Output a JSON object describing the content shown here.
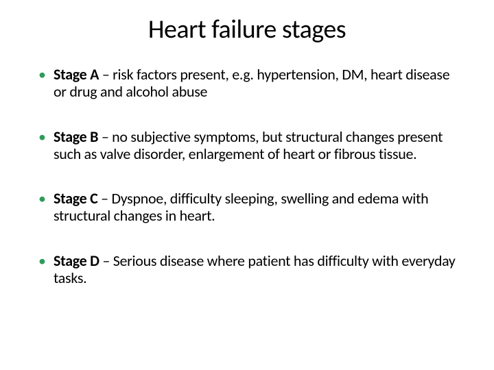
{
  "slide": {
    "title": "Heart failure stages",
    "title_fontsize": 38,
    "title_color": "#000000",
    "background_color": "#ffffff",
    "bullet_color": "#2e9c5b",
    "body_fontsize": 22,
    "body_color": "#000000",
    "font_family": "Calibri",
    "stages": [
      {
        "label": "Stage A",
        "separator": " – ",
        "description": "risk factors present, e.g. hypertension, DM, heart disease or drug and alcohol abuse"
      },
      {
        "label": "Stage B",
        "separator": " – ",
        "description": "no subjective symptoms, but structural changes present such as valve disorder, enlargement of heart or fibrous tissue."
      },
      {
        "label": "Stage C",
        "separator": " – ",
        "description": "Dyspnoe, difficulty sleeping, swelling and edema with structural changes in heart."
      },
      {
        "label": "Stage D",
        "separator": " – ",
        "description": "Serious disease where patient has difficulty with everyday tasks."
      }
    ]
  }
}
